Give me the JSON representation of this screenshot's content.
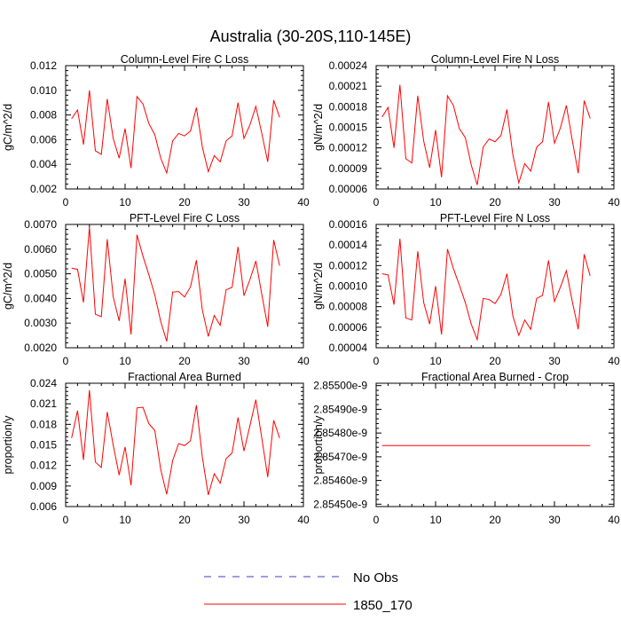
{
  "title": "Australia (30-20S,110-145E)",
  "legend": {
    "position": "bottom-center",
    "entries": [
      {
        "label": "No Obs",
        "color": "#3b3bd0",
        "style": "dashed"
      },
      {
        "label": "1850_170",
        "color": "#ff0000",
        "style": "solid"
      }
    ]
  },
  "chart_data": [
    {
      "type": "line",
      "title": "Column-Level Fire C Loss",
      "ylabel": "gC/m^2/d",
      "xlabel": "",
      "xlim": [
        0,
        40
      ],
      "xticks": [
        0,
        10,
        20,
        30,
        40
      ],
      "xtick_labels": [
        "0",
        "10",
        "20",
        "30",
        "40"
      ],
      "ylim": [
        0.002,
        0.012
      ],
      "yticks": [
        0.002,
        0.004,
        0.006,
        0.008,
        0.01,
        0.012
      ],
      "ytick_labels": [
        "0.002",
        "0.004",
        "0.006",
        "0.008",
        "0.010",
        "0.012"
      ],
      "series": [
        {
          "name": "1850_170",
          "color": "#ff0000",
          "x": [
            1,
            2,
            3,
            4,
            5,
            6,
            7,
            8,
            9,
            10,
            11,
            12,
            13,
            14,
            15,
            16,
            17,
            18,
            19,
            20,
            21,
            22,
            23,
            24,
            25,
            26,
            27,
            28,
            29,
            30,
            31,
            32,
            33,
            34,
            35,
            36
          ],
          "values": [
            0.0077,
            0.0084,
            0.0056,
            0.01,
            0.0051,
            0.0048,
            0.0093,
            0.0061,
            0.0045,
            0.0069,
            0.0037,
            0.0095,
            0.0089,
            0.0073,
            0.0064,
            0.0045,
            0.0033,
            0.0059,
            0.0065,
            0.0063,
            0.0067,
            0.0086,
            0.0054,
            0.0034,
            0.0047,
            0.0042,
            0.0059,
            0.0063,
            0.009,
            0.0061,
            0.0072,
            0.0087,
            0.0065,
            0.0042,
            0.0092,
            0.0078
          ]
        }
      ]
    },
    {
      "type": "line",
      "title": "Column-Level Fire N Loss",
      "ylabel": "gN/m^2/d",
      "xlabel": "",
      "xlim": [
        0,
        40
      ],
      "xticks": [
        0,
        10,
        20,
        30,
        40
      ],
      "xtick_labels": [
        "0",
        "10",
        "20",
        "30",
        "40"
      ],
      "ylim": [
        6e-05,
        0.00024
      ],
      "yticks": [
        6e-05,
        9e-05,
        0.00012,
        0.00015,
        0.00018,
        0.00021,
        0.00024
      ],
      "ytick_labels": [
        "0.00006",
        "0.00009",
        "0.00012",
        "0.00015",
        "0.00018",
        "0.00021",
        "0.00024"
      ],
      "series": [
        {
          "name": "1850_170",
          "color": "#ff0000",
          "x": [
            1,
            2,
            3,
            4,
            5,
            6,
            7,
            8,
            9,
            10,
            11,
            12,
            13,
            14,
            15,
            16,
            17,
            18,
            19,
            20,
            21,
            22,
            23,
            24,
            25,
            26,
            27,
            28,
            29,
            30,
            31,
            32,
            33,
            34,
            35,
            36
          ],
          "values": [
            0.000165,
            0.000179,
            0.00012,
            0.000212,
            0.000104,
            9.8e-05,
            0.000196,
            0.00013,
            9.1e-05,
            0.000146,
            7.7e-05,
            0.000196,
            0.000182,
            0.000148,
            0.000135,
            9.5e-05,
            6.6e-05,
            0.000121,
            0.000133,
            0.000129,
            0.000138,
            0.000176,
            0.00011,
            6.9e-05,
            9.7e-05,
            8.6e-05,
            0.000121,
            0.000129,
            0.000187,
            0.000127,
            0.000149,
            0.000182,
            0.000131,
            8.3e-05,
            0.000189,
            0.000163
          ]
        }
      ]
    },
    {
      "type": "line",
      "title": "PFT-Level Fire C Loss",
      "ylabel": "gC/m^2/d",
      "xlabel": "",
      "xlim": [
        0,
        40
      ],
      "xticks": [
        0,
        10,
        20,
        30,
        40
      ],
      "xtick_labels": [
        "0",
        "10",
        "20",
        "30",
        "40"
      ],
      "ylim": [
        0.002,
        0.007
      ],
      "yticks": [
        0.002,
        0.003,
        0.004,
        0.005,
        0.006,
        0.007
      ],
      "ytick_labels": [
        "0.0020",
        "0.0030",
        "0.0040",
        "0.0050",
        "0.0060",
        "0.0070"
      ],
      "series": [
        {
          "name": "1850_170",
          "color": "#ff0000",
          "x": [
            1,
            2,
            3,
            4,
            5,
            6,
            7,
            8,
            9,
            10,
            11,
            12,
            13,
            14,
            15,
            16,
            17,
            18,
            19,
            20,
            21,
            22,
            23,
            24,
            25,
            26,
            27,
            28,
            29,
            30,
            31,
            32,
            33,
            34,
            35,
            36
          ],
          "values": [
            0.00523,
            0.00518,
            0.00384,
            0.0069,
            0.00336,
            0.00326,
            0.0064,
            0.00407,
            0.00309,
            0.0048,
            0.00254,
            0.00658,
            0.00572,
            0.00496,
            0.00414,
            0.00306,
            0.00226,
            0.00426,
            0.00428,
            0.00406,
            0.00447,
            0.00555,
            0.00353,
            0.00246,
            0.00331,
            0.00291,
            0.00435,
            0.00445,
            0.00609,
            0.00411,
            0.00476,
            0.00552,
            0.00417,
            0.00285,
            0.00637,
            0.00533
          ]
        }
      ]
    },
    {
      "type": "line",
      "title": "PFT-Level Fire N Loss",
      "ylabel": "gN/m^2/d",
      "xlabel": "",
      "xlim": [
        0,
        40
      ],
      "xticks": [
        0,
        10,
        20,
        30,
        40
      ],
      "xtick_labels": [
        "0",
        "10",
        "20",
        "30",
        "40"
      ],
      "ylim": [
        4e-05,
        0.00016
      ],
      "yticks": [
        4e-05,
        6e-05,
        8e-05,
        0.0001,
        0.00012,
        0.00014,
        0.00016
      ],
      "ytick_labels": [
        "0.00004",
        "0.00006",
        "0.00008",
        "0.00010",
        "0.00012",
        "0.00014",
        "0.00016"
      ],
      "series": [
        {
          "name": "1850_170",
          "color": "#ff0000",
          "x": [
            1,
            2,
            3,
            4,
            5,
            6,
            7,
            8,
            9,
            10,
            11,
            12,
            13,
            14,
            15,
            16,
            17,
            18,
            19,
            20,
            21,
            22,
            23,
            24,
            25,
            26,
            27,
            28,
            29,
            30,
            31,
            32,
            33,
            34,
            35,
            36
          ],
          "values": [
            0.000112,
            0.000111,
            8.2e-05,
            0.000146,
            6.9e-05,
            6.7e-05,
            0.000134,
            8.4e-05,
            6.3e-05,
            0.0001,
            5.3e-05,
            0.000136,
            0.000117,
            0.000101,
            8.4e-05,
            6.3e-05,
            4.8e-05,
            8.8e-05,
            8.7e-05,
            8.3e-05,
            9.2e-05,
            0.000112,
            7.1e-05,
            5.2e-05,
            6.7e-05,
            5.8e-05,
            8.8e-05,
            9.1e-05,
            0.000125,
            8.5e-05,
            9.9e-05,
            0.000115,
            8.5e-05,
            5.8e-05,
            0.000131,
            0.00011
          ]
        }
      ]
    },
    {
      "type": "line",
      "title": "Fractional Area Burned",
      "ylabel": "proportion/y",
      "xlabel": "",
      "xlim": [
        0,
        40
      ],
      "xticks": [
        0,
        10,
        20,
        30,
        40
      ],
      "xtick_labels": [
        "0",
        "10",
        "20",
        "30",
        "40"
      ],
      "ylim": [
        0.006,
        0.024
      ],
      "yticks": [
        0.006,
        0.009,
        0.012,
        0.015,
        0.018,
        0.021,
        0.024
      ],
      "ytick_labels": [
        "0.006",
        "0.009",
        "0.012",
        "0.015",
        "0.018",
        "0.021",
        "0.024"
      ],
      "series": [
        {
          "name": "1850_170",
          "color": "#ff0000",
          "x": [
            1,
            2,
            3,
            4,
            5,
            6,
            7,
            8,
            9,
            10,
            11,
            12,
            13,
            14,
            15,
            16,
            17,
            18,
            19,
            20,
            21,
            22,
            23,
            24,
            25,
            26,
            27,
            28,
            29,
            30,
            31,
            32,
            33,
            34,
            35,
            36
          ],
          "values": [
            0.016,
            0.02,
            0.0128,
            0.023,
            0.0125,
            0.0117,
            0.0198,
            0.015,
            0.0106,
            0.0147,
            0.0091,
            0.0204,
            0.0205,
            0.0181,
            0.0171,
            0.0114,
            0.0078,
            0.0127,
            0.0152,
            0.0149,
            0.0156,
            0.0208,
            0.0132,
            0.0077,
            0.0108,
            0.0094,
            0.013,
            0.0138,
            0.019,
            0.0141,
            0.0178,
            0.0216,
            0.016,
            0.0103,
            0.0186,
            0.016
          ]
        }
      ]
    },
    {
      "type": "line",
      "title": "Fractional Area Burned - Crop",
      "ylabel": "proportion/y",
      "xlabel": "",
      "xlim": [
        0,
        40
      ],
      "xticks": [
        0,
        10,
        20,
        30,
        40
      ],
      "xtick_labels": [
        "0",
        "10",
        "20",
        "30",
        "40"
      ],
      "ylim": [
        2.85449e-09,
        2.85501e-09
      ],
      "yticks": [
        2.8545e-09,
        2.8546e-09,
        2.8547e-09,
        2.8548e-09,
        2.8549e-09,
        2.855e-09
      ],
      "ytick_labels": [
        "2.85450e-9",
        "2.85460e-9",
        "2.85470e-9",
        "2.85480e-9",
        "2.85490e-9",
        "2.85500e-9"
      ],
      "series": [
        {
          "name": "1850_170",
          "color": "#ff0000",
          "x": [
            1,
            36
          ],
          "values": [
            2.854747e-09,
            2.854747e-09
          ]
        }
      ]
    }
  ]
}
